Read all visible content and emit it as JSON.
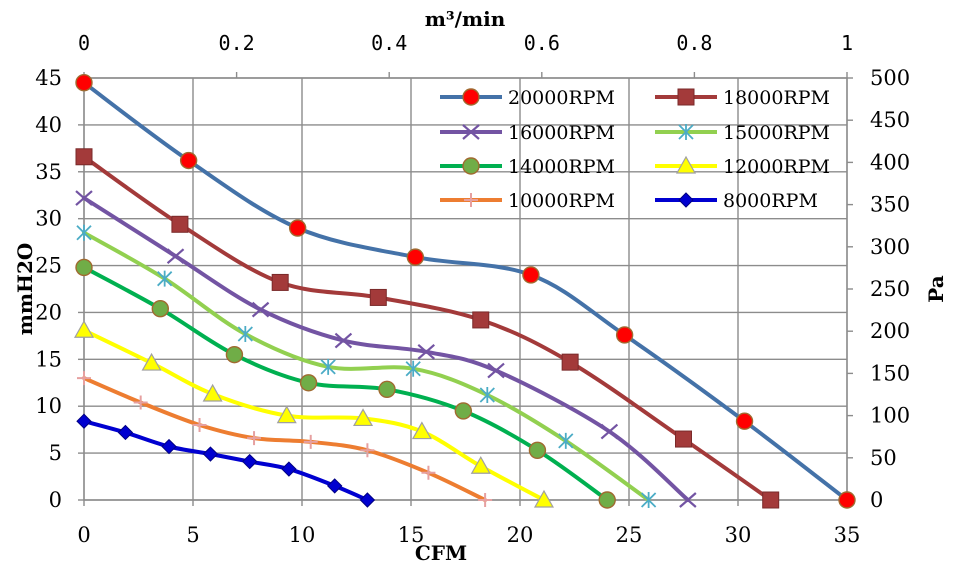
{
  "chart_data": {
    "type": "line",
    "xlabel": "CFM",
    "ylabel": "mmH2O",
    "x2label": "m³/min",
    "y2label": "Pa",
    "xlim": [
      0,
      35
    ],
    "ylim": [
      0,
      45
    ],
    "x2lim": [
      0,
      1
    ],
    "y2lim": [
      0,
      500
    ],
    "xticks": [
      "0",
      "5",
      "10",
      "15",
      "20",
      "25",
      "30",
      "35"
    ],
    "yticks": [
      "0",
      "5",
      "10",
      "15",
      "20",
      "25",
      "30",
      "35",
      "40",
      "45"
    ],
    "x2ticks": [
      "0",
      "0.2",
      "0.4",
      "0.6",
      "0.8",
      "1"
    ],
    "y2ticks": [
      "0",
      "50",
      "100",
      "150",
      "200",
      "250",
      "300",
      "350",
      "400",
      "450",
      "500"
    ],
    "grid": true,
    "legend": "top-right",
    "series": [
      {
        "name": "20000RPM",
        "color": "#4472a8",
        "marker": "circle",
        "marker_color": "#ff0000",
        "x": [
          0,
          4.8,
          9.8,
          15.2,
          20.5,
          24.8,
          30.3,
          35
        ],
        "y": [
          44.5,
          36.2,
          29,
          25.9,
          24,
          17.6,
          8.4,
          0
        ]
      },
      {
        "name": "18000RPM",
        "color": "#a33a3a",
        "marker": "square",
        "marker_color": "#a33a3a",
        "x": [
          0,
          4.4,
          9,
          13.5,
          18.2,
          22.3,
          27.5,
          31.5
        ],
        "y": [
          36.6,
          29.4,
          23.2,
          21.6,
          19.2,
          14.7,
          6.5,
          0
        ]
      },
      {
        "name": "16000RPM",
        "color": "#7354a3",
        "marker": "x",
        "marker_color": "#7354a3",
        "x": [
          0,
          4.2,
          8.1,
          11.9,
          15.7,
          18.9,
          24.1,
          27.7
        ],
        "y": [
          32.2,
          26,
          20.3,
          17,
          15.8,
          13.8,
          7.3,
          0
        ]
      },
      {
        "name": "15000RPM",
        "color": "#92d050",
        "marker": "asterisk",
        "marker_color": "#4bacc6",
        "x": [
          0,
          3.7,
          7.4,
          11.2,
          15.1,
          18.5,
          22.1,
          25.9
        ],
        "y": [
          28.5,
          23.6,
          17.7,
          14.2,
          14,
          11.2,
          6.3,
          0
        ]
      },
      {
        "name": "14000RPM",
        "color": "#00b050",
        "marker": "circle",
        "marker_color": "#70ad47",
        "x": [
          0,
          3.5,
          6.9,
          10.3,
          13.9,
          17.4,
          20.8,
          24
        ],
        "y": [
          24.8,
          20.4,
          15.5,
          12.5,
          11.8,
          9.5,
          5.3,
          0
        ]
      },
      {
        "name": "12000RPM",
        "color": "#ffff00",
        "marker": "triangle",
        "marker_color": "#ffff00",
        "x": [
          0,
          3.1,
          5.9,
          9.3,
          12.8,
          15.5,
          18.2,
          21.1
        ],
        "y": [
          18.1,
          14.6,
          11.3,
          9,
          8.7,
          7.3,
          3.6,
          0
        ]
      },
      {
        "name": "10000RPM",
        "color": "#ed7d31",
        "marker": "plus",
        "marker_color": "#e6a0a0",
        "x": [
          0,
          2.6,
          5.3,
          7.8,
          10.4,
          13,
          15.8,
          18.4
        ],
        "y": [
          13,
          10.4,
          8,
          6.6,
          6.2,
          5.3,
          2.9,
          0
        ]
      },
      {
        "name": "8000RPM",
        "color": "#0000d0",
        "marker": "diamond",
        "marker_color": "#0000d0",
        "x": [
          0,
          1.9,
          3.9,
          5.8,
          7.6,
          9.4,
          11.5,
          13
        ],
        "y": [
          8.4,
          7.2,
          5.7,
          4.9,
          4.1,
          3.3,
          1.5,
          0
        ]
      }
    ]
  }
}
